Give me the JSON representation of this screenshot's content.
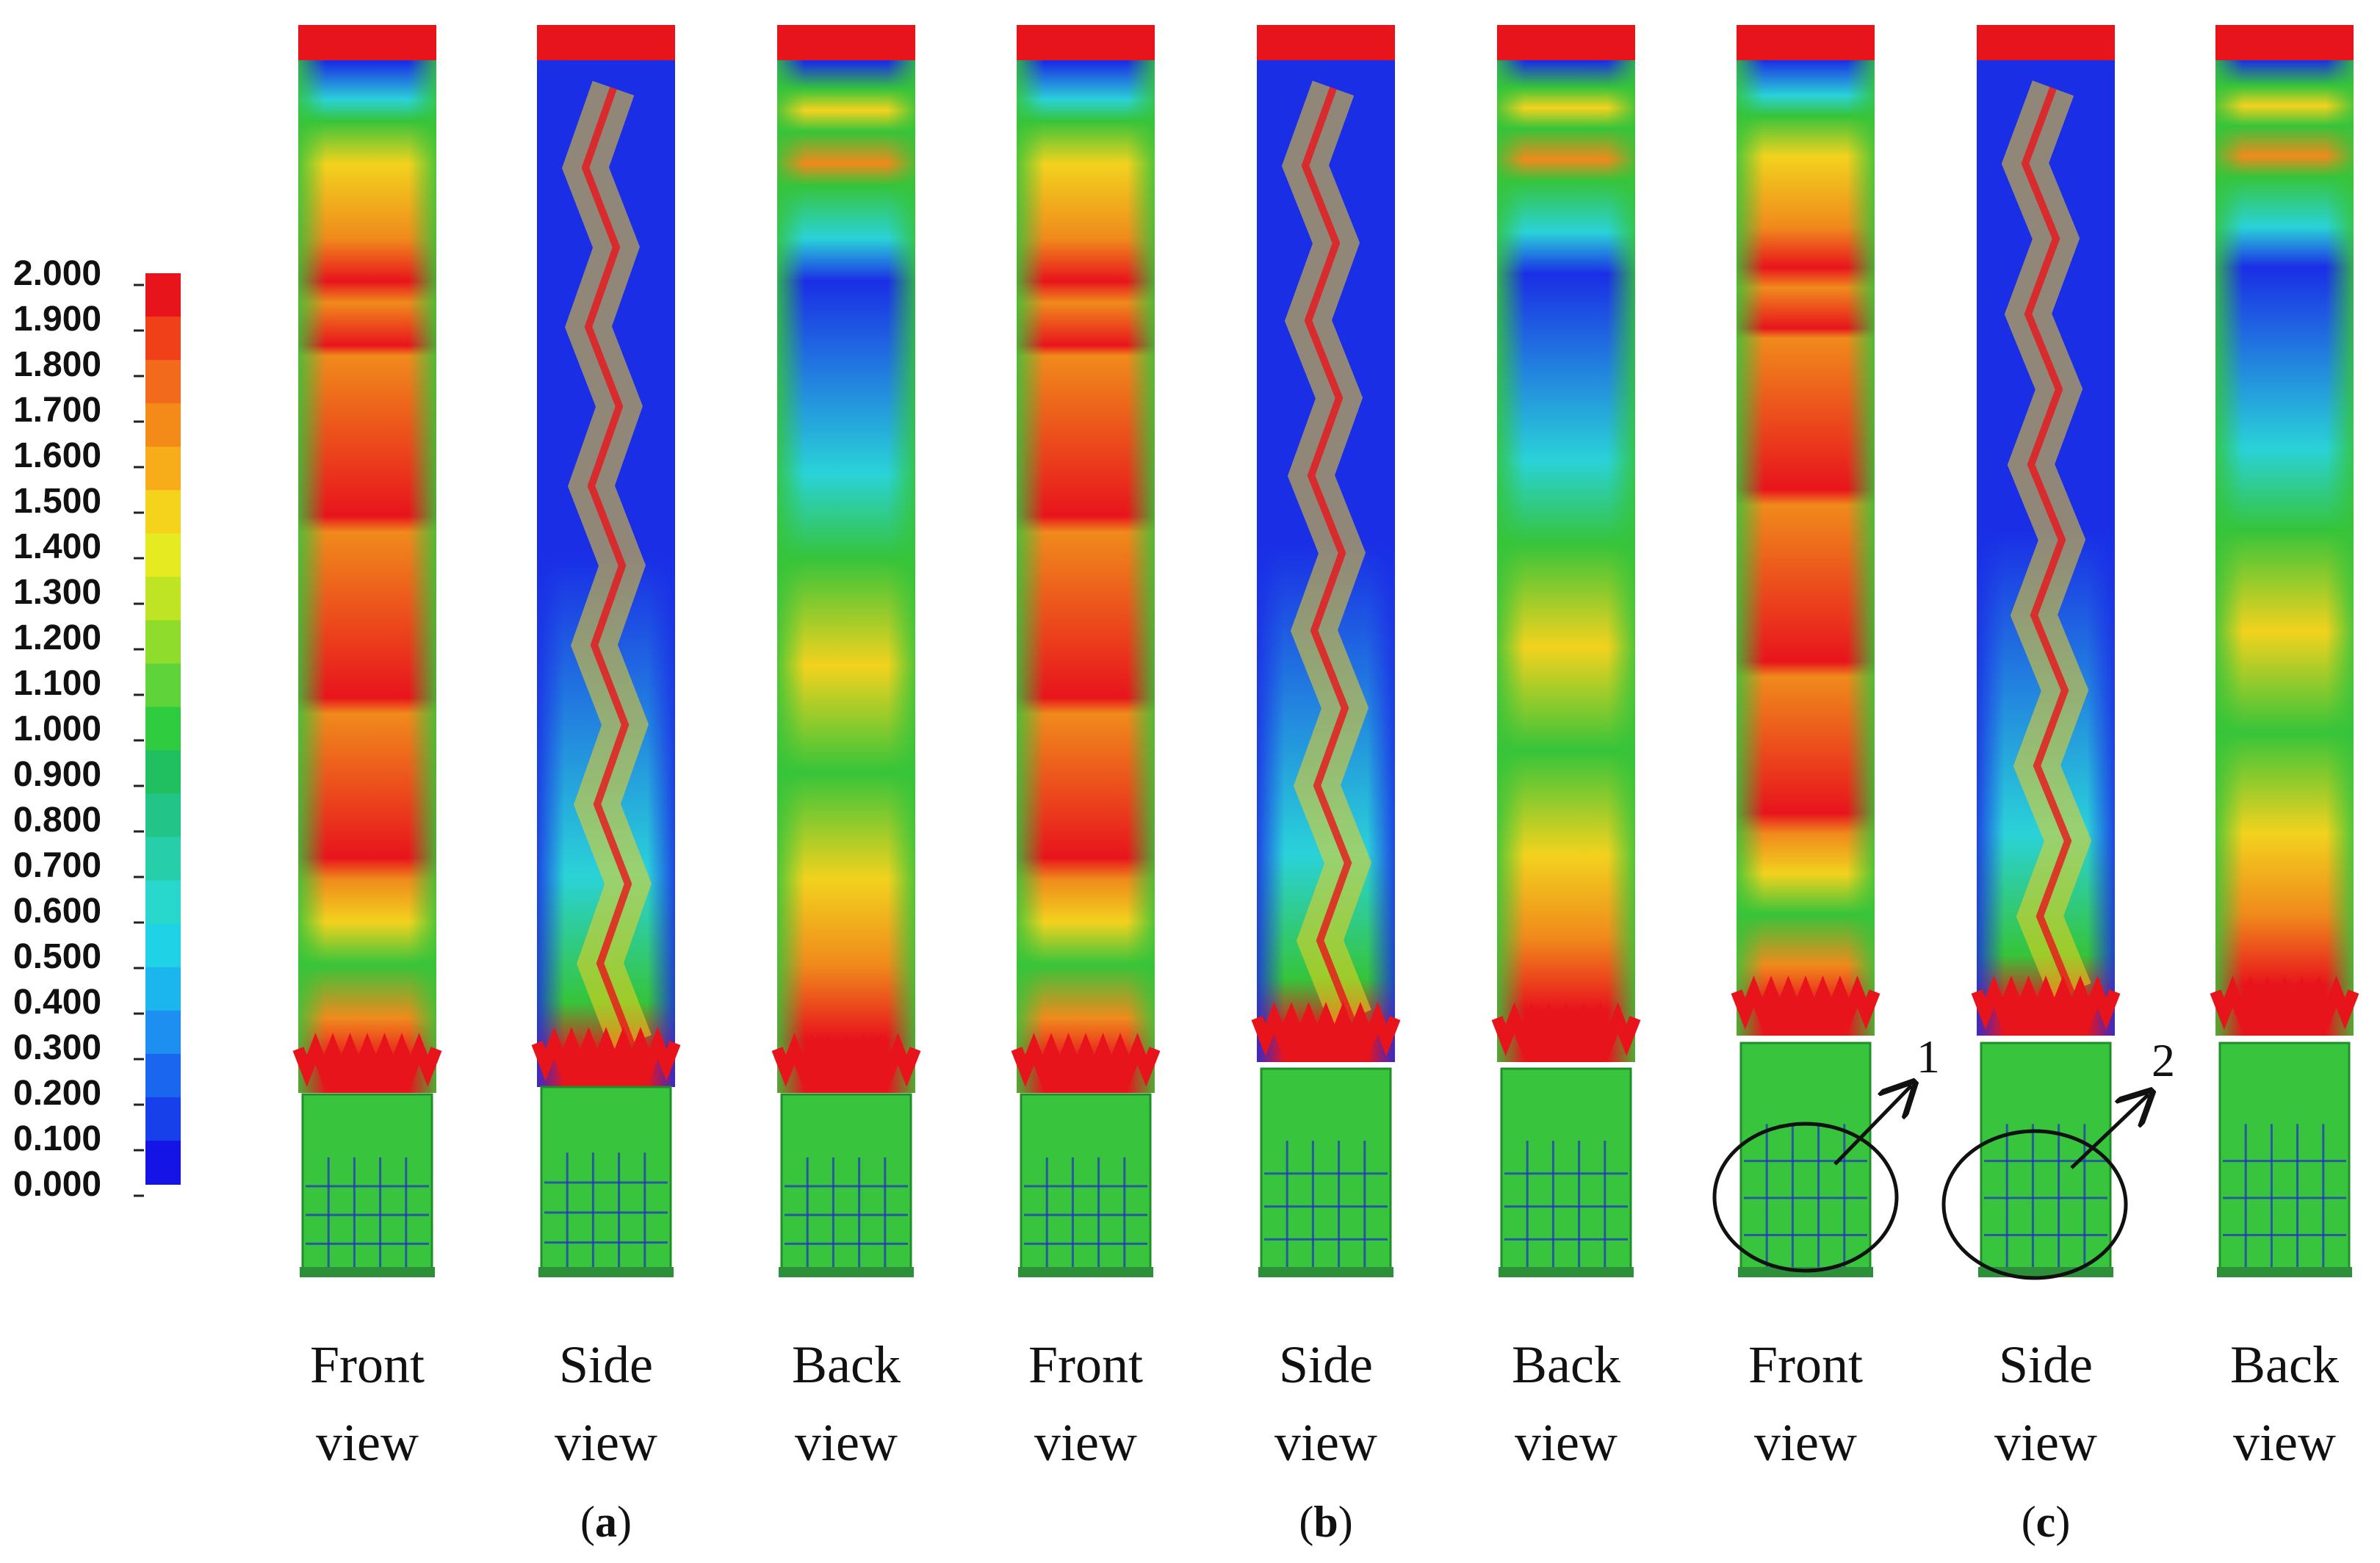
{
  "colorbar": {
    "ticks": [
      "2.000",
      "1.900",
      "1.800",
      "1.700",
      "1.600",
      "1.500",
      "1.400",
      "1.300",
      "1.200",
      "1.100",
      "1.000",
      "0.900",
      "0.800",
      "0.700",
      "0.600",
      "0.500",
      "0.400",
      "0.300",
      "0.200",
      "0.100",
      "0.000"
    ],
    "colors": [
      "#e8141c",
      "#f0401a",
      "#f26a1c",
      "#f48a18",
      "#f7ad1a",
      "#f5d21c",
      "#e6ea20",
      "#bfe424",
      "#8fdc2c",
      "#5fd43a",
      "#2fcc40",
      "#20c060",
      "#22c488",
      "#26cfaa",
      "#28d8cc",
      "#20d2e6",
      "#1cb6ee",
      "#1c8ff0",
      "#1a66ee",
      "#1840ea",
      "#1414e6"
    ]
  },
  "views": [
    {
      "line1": "Front",
      "line2": "view",
      "type": "front"
    },
    {
      "line1": "Side",
      "line2": "view",
      "type": "side"
    },
    {
      "line1": "Back",
      "line2": "view",
      "type": "back"
    },
    {
      "line1": "Front",
      "line2": "view",
      "type": "front"
    },
    {
      "line1": "Side",
      "line2": "view",
      "type": "side"
    },
    {
      "line1": "Back",
      "line2": "view",
      "type": "back"
    },
    {
      "line1": "Front",
      "line2": "view",
      "type": "front"
    },
    {
      "line1": "Side",
      "line2": "view",
      "type": "side"
    },
    {
      "line1": "Back",
      "line2": "view",
      "type": "back"
    }
  ],
  "groups": [
    {
      "open": "(",
      "letter": "a",
      "close": ")"
    },
    {
      "open": "(",
      "letter": "b",
      "close": ")"
    },
    {
      "open": "(",
      "letter": "c",
      "close": ")"
    }
  ],
  "callouts": [
    "1",
    "2"
  ],
  "palette": {
    "red": "#e8141c",
    "orange": "#f08a1c",
    "yellow": "#f2d21e",
    "green": "#36c43a",
    "cyan": "#2ad2d8",
    "blue": "#1a2ee6",
    "grid": "#2030c0"
  }
}
